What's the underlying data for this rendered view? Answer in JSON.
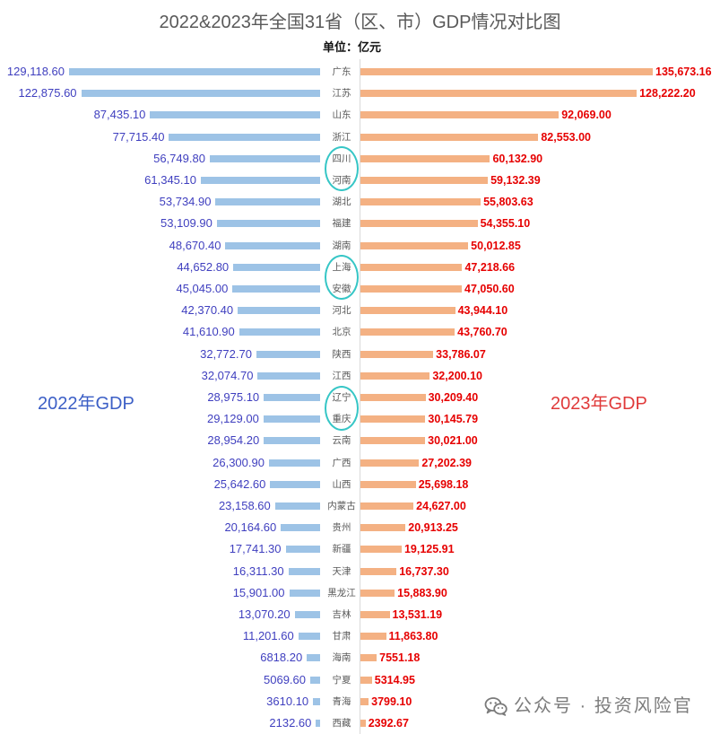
{
  "watermark": {
    "text": "公众号 · 投资风险官",
    "icon": "wechat-icon"
  },
  "colors": {
    "bar_2022": "#9dc3e6",
    "bar_2023": "#f4b183",
    "label_2022": "#3f3fbf",
    "label_2023": "#e60000",
    "series_title_2022": "#3c5fc6",
    "series_title_2023": "#e03a3a",
    "highlight": "#36c6c6",
    "title": "#595959"
  },
  "chart_data": {
    "type": "bar",
    "orientation": "horizontal",
    "title": "2022&2023年全国31省（区、市）GDP情况对比图",
    "subtitle": "单位：亿元",
    "grid": false,
    "categories": [
      "广东",
      "江苏",
      "山东",
      "浙江",
      "四川",
      "河南",
      "湖北",
      "福建",
      "湖南",
      "上海",
      "安徽",
      "河北",
      "北京",
      "陕西",
      "江西",
      "辽宁",
      "重庆",
      "云南",
      "广西",
      "山西",
      "内蒙古",
      "贵州",
      "新疆",
      "天津",
      "黑龙江",
      "吉林",
      "甘肃",
      "海南",
      "宁夏",
      "青海",
      "西藏"
    ],
    "series": [
      {
        "name": "2022年GDP",
        "side": "left",
        "values": [
          129118.6,
          122875.6,
          87435.1,
          77715.4,
          56749.8,
          61345.1,
          53734.9,
          53109.9,
          48670.4,
          44652.8,
          45045.0,
          42370.4,
          41610.9,
          32772.7,
          32074.7,
          28975.1,
          29129.0,
          28954.2,
          26300.9,
          25642.6,
          23158.6,
          20164.6,
          17741.3,
          16311.3,
          15901.0,
          13070.2,
          11201.6,
          6818.2,
          5069.6,
          3610.1,
          2132.6
        ],
        "labels": [
          "129,118.60",
          "122,875.60",
          "87,435.10",
          "77,715.40",
          "56,749.80",
          "61,345.10",
          "53,734.90",
          "53,109.90",
          "48,670.40",
          "44,652.80",
          "45,045.00",
          "42,370.40",
          "41,610.90",
          "32,772.70",
          "32,074.70",
          "28,975.10",
          "29,129.00",
          "28,954.20",
          "26,300.90",
          "25,642.60",
          "23,158.60",
          "20,164.60",
          "17,741.30",
          "16,311.30",
          "15,901.00",
          "13,070.20",
          "11,201.60",
          "6818.20",
          "5069.60",
          "3610.10",
          "2132.60"
        ]
      },
      {
        "name": "2023年GDP",
        "side": "right",
        "values": [
          135673.16,
          128222.2,
          92069.0,
          82553.0,
          60132.9,
          59132.39,
          55803.63,
          54355.1,
          50012.85,
          47218.66,
          47050.6,
          43944.1,
          43760.7,
          33786.07,
          32200.1,
          30209.4,
          30145.79,
          30021.0,
          27202.39,
          25698.18,
          24627.0,
          20913.25,
          19125.91,
          16737.3,
          15883.9,
          13531.19,
          11863.8,
          7551.18,
          5314.95,
          3799.1,
          2392.67
        ],
        "labels": [
          "135,673.16",
          "128,222.20",
          "92,069.00",
          "82,553.00",
          "60,132.90",
          "59,132.39",
          "55,803.63",
          "54,355.10",
          "50,012.85",
          "47,218.66",
          "47,050.60",
          "43,944.10",
          "43,760.70",
          "33,786.07",
          "32,200.10",
          "30,209.40",
          "30,145.79",
          "30,021.00",
          "27,202.39",
          "25,698.18",
          "24,627.00",
          "20,913.25",
          "19,125.91",
          "16,737.30",
          "15,883.90",
          "13,531.19",
          "11,863.80",
          "7551.18",
          "5314.95",
          "3799.10",
          "2392.67"
        ]
      }
    ],
    "highlight_groups": [
      [
        4,
        5
      ],
      [
        9,
        10
      ],
      [
        15,
        16
      ]
    ]
  }
}
